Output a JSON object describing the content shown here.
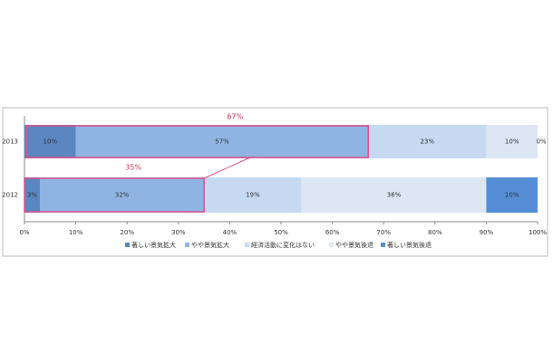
{
  "chart_data": {
    "type": "stacked-bar-horizontal",
    "categories": [
      "2013",
      "2012"
    ],
    "series": [
      {
        "name": "著しい景気拡大",
        "color": "#5a86c2",
        "values": [
          10,
          3
        ],
        "value_labels": [
          "10%",
          "3%"
        ]
      },
      {
        "name": "やや景気拡大",
        "color": "#8fb4e3",
        "values": [
          57,
          32
        ],
        "value_labels": [
          "57%",
          "32%"
        ]
      },
      {
        "name": "経済活動に変化はない",
        "color": "#c6d9f1",
        "values": [
          23,
          19
        ],
        "value_labels": [
          "23%",
          "19%"
        ]
      },
      {
        "name": "やや景気後退",
        "color": "#dde7f3",
        "values": [
          10,
          36
        ],
        "value_labels": [
          "10%",
          "36%"
        ]
      },
      {
        "name": "著しい景気後退",
        "color": "#558ed5",
        "values": [
          0,
          10
        ],
        "value_labels": [
          "0%",
          "10%"
        ]
      }
    ],
    "xlim": [
      0,
      100
    ],
    "xticks": [
      {
        "value": 0,
        "label": "0%"
      },
      {
        "value": 10,
        "label": "10%"
      },
      {
        "value": 20,
        "label": "20%"
      },
      {
        "value": 30,
        "label": "30%"
      },
      {
        "value": 40,
        "label": "40%"
      },
      {
        "value": 50,
        "label": "50%"
      },
      {
        "value": 60,
        "label": "60%"
      },
      {
        "value": 70,
        "label": "70%"
      },
      {
        "value": 80,
        "label": "80%"
      },
      {
        "value": 90,
        "label": "90%"
      },
      {
        "value": 100,
        "label": "100%"
      }
    ],
    "annotations": [
      {
        "value": 67,
        "label": "67%"
      },
      {
        "value": 35,
        "label": "35%"
      }
    ],
    "highlight_color": "#e0508a",
    "legend": "bottom"
  }
}
